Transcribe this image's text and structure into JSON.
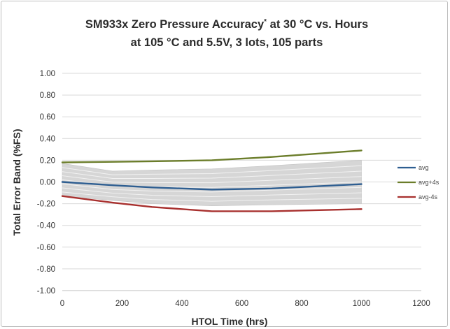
{
  "chart_data": {
    "type": "line",
    "title_line1": "SM933x Zero Pressure Accuracy",
    "title_marker": "*",
    "title_line1_suffix": " at 30 °C vs. Hours",
    "title_line2": "at 105 °C and 5.5V, 3 lots, 105 parts",
    "xlabel": "HTOL Time (hrs)",
    "ylabel": "Total Error Band (%FS)",
    "xlim": [
      0,
      1200
    ],
    "ylim": [
      -1.0,
      1.0
    ],
    "x_ticks": [
      0,
      200,
      400,
      600,
      800,
      1000,
      1200
    ],
    "x_tick_labels": [
      "0",
      "200",
      "400",
      "600",
      "800",
      "1000",
      "1200"
    ],
    "y_ticks": [
      1.0,
      0.8,
      0.6,
      0.4,
      0.2,
      0.0,
      -0.2,
      -0.4,
      -0.6,
      -0.8,
      -1.0
    ],
    "y_tick_labels": [
      "1.00",
      "0.80",
      "0.60",
      "0.40",
      "0.20",
      "0.00",
      "-0.20",
      "-0.40",
      "-0.60",
      "-0.80",
      "-1.00"
    ],
    "grid": "horizontal",
    "legend_position": "right",
    "x": [
      0,
      168,
      300,
      500,
      700,
      1000
    ],
    "series": [
      {
        "name": "avg",
        "color": "#2e5e91",
        "values": [
          0.0,
          -0.03,
          -0.05,
          -0.07,
          -0.06,
          -0.02
        ]
      },
      {
        "name": "avg+4s",
        "color": "#6b7d2a",
        "values": [
          0.18,
          0.185,
          0.19,
          0.2,
          0.23,
          0.29
        ]
      },
      {
        "name": "avg-4s",
        "color": "#a8302e",
        "values": [
          -0.13,
          -0.19,
          -0.23,
          -0.27,
          -0.27,
          -0.25
        ]
      }
    ],
    "parts_band": {
      "color": "#d6d6d6",
      "upper": [
        0.17,
        0.1,
        0.11,
        0.12,
        0.15,
        0.2
      ],
      "lower": [
        -0.13,
        -0.17,
        -0.2,
        -0.22,
        -0.21,
        -0.2
      ]
    }
  }
}
